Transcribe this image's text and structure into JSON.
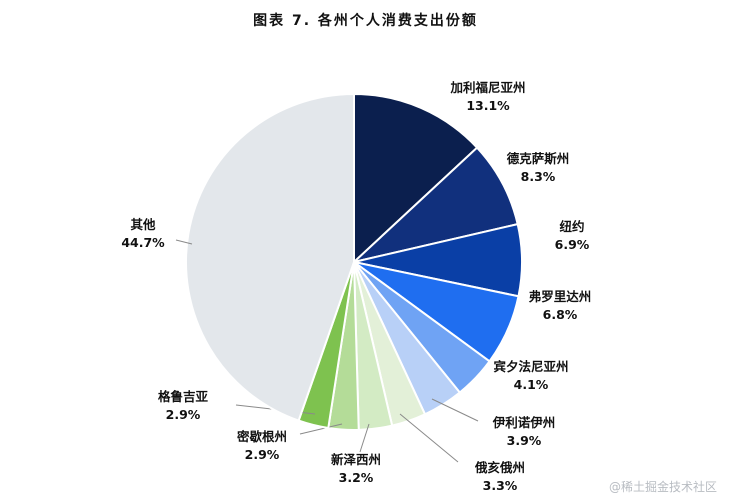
{
  "title": "图表 7. 各州个人消费支出份额",
  "watermark": "@稀土掘金技术社区",
  "chart_data": {
    "type": "pie",
    "title": "图表 7. 各州个人消费支出份额",
    "slices": [
      {
        "label": "加利福尼亚州",
        "value": 13.1,
        "value_label": "13.1%",
        "color": "#0b1f4e"
      },
      {
        "label": "德克萨斯州",
        "value": 8.3,
        "value_label": "8.3%",
        "color": "#11307d"
      },
      {
        "label": "纽约",
        "value": 6.9,
        "value_label": "6.9%",
        "color": "#0a3fa6"
      },
      {
        "label": "弗罗里达州",
        "value": 6.8,
        "value_label": "6.8%",
        "color": "#1f6ef0"
      },
      {
        "label": "宾夕法尼亚州",
        "value": 4.1,
        "value_label": "4.1%",
        "color": "#6fa3f4"
      },
      {
        "label": "伊利诺伊州",
        "value": 3.9,
        "value_label": "3.9%",
        "color": "#b8d0f7"
      },
      {
        "label": "俄亥俄州",
        "value": 3.3,
        "value_label": "3.3%",
        "color": "#e3f0d8"
      },
      {
        "label": "新泽西州",
        "value": 3.2,
        "value_label": "3.2%",
        "color": "#d3ebc4"
      },
      {
        "label": "密歇根州",
        "value": 2.9,
        "value_label": "2.9%",
        "color": "#b4dc98"
      },
      {
        "label": "格鲁吉亚",
        "value": 2.9,
        "value_label": "2.9%",
        "color": "#7ec24f"
      },
      {
        "label": "其他",
        "value": 44.7,
        "value_label": "44.7%",
        "color": "#e3e7eb"
      }
    ]
  }
}
